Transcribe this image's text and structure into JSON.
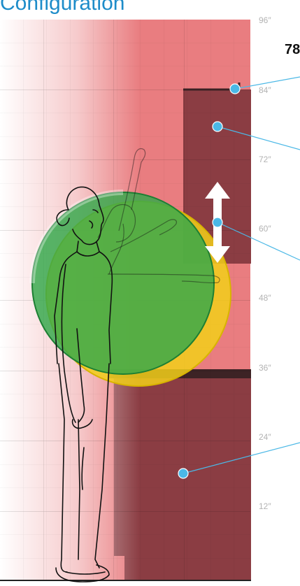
{
  "title": "Configuration",
  "height_label": "78",
  "ruler": {
    "unit": "inches",
    "ticks": [
      "96″",
      "84″",
      "72″",
      "60″",
      "48″",
      "36″",
      "24″",
      "12″"
    ]
  },
  "zones": [
    {
      "name": "upper-reach",
      "color": "#e97d80"
    },
    {
      "name": "cabinet-upper",
      "color": "#8b3d43"
    },
    {
      "name": "cabinet-lower",
      "color": "#8b3d43"
    },
    {
      "name": "counter-band",
      "color": "#3d2325"
    }
  ],
  "reach_circles": [
    {
      "name": "reach-yellow",
      "color": "#f2cf1a"
    },
    {
      "name": "reach-green",
      "color": "#33a84a"
    }
  ],
  "callout_color": "#4bb8e6",
  "figure": "standing-person"
}
